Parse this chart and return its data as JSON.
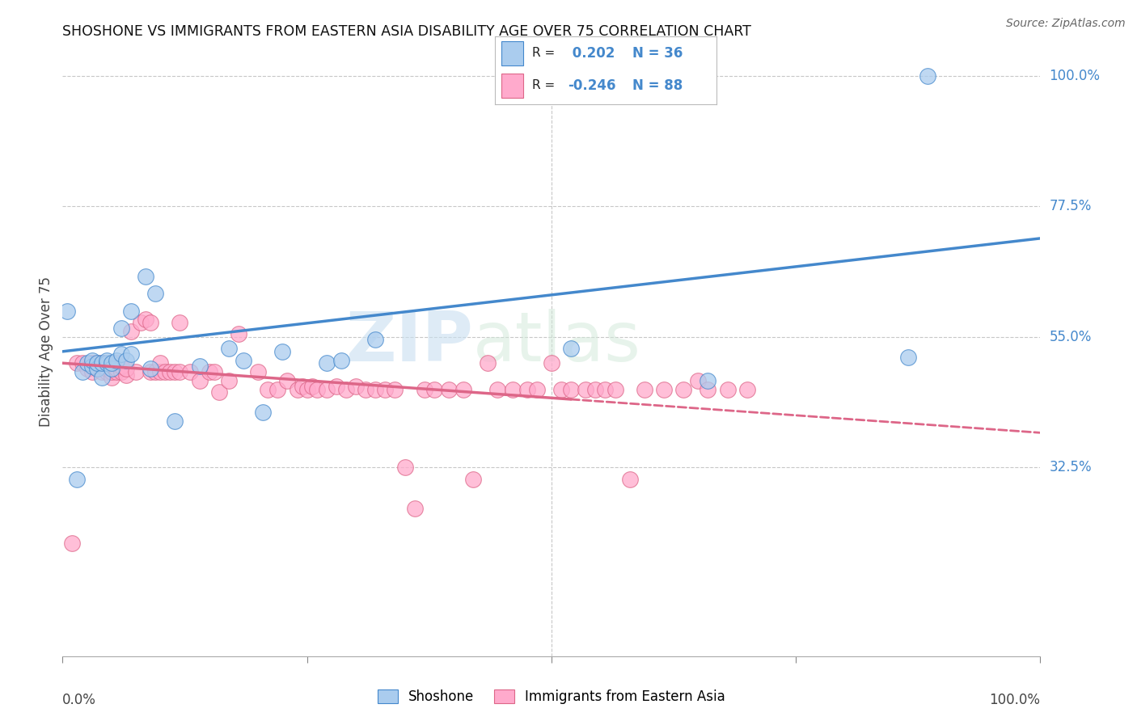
{
  "title": "SHOSHONE VS IMMIGRANTS FROM EASTERN ASIA DISABILITY AGE OVER 75 CORRELATION CHART",
  "source": "Source: ZipAtlas.com",
  "ylabel": "Disability Age Over 75",
  "xlim": [
    0.0,
    1.0
  ],
  "ylim": [
    0.0,
    1.0
  ],
  "ytick_vals": [
    0.325,
    0.55,
    0.775,
    1.0
  ],
  "ytick_labels": [
    "32.5%",
    "55.0%",
    "77.5%",
    "100.0%"
  ],
  "shoshone_color": "#aaccee",
  "shoshone_line_color": "#4488cc",
  "immigrants_color": "#ffaacc",
  "immigrants_line_color": "#dd6688",
  "R_shoshone": 0.202,
  "N_shoshone": 36,
  "R_immigrants": -0.246,
  "N_immigrants": 88,
  "watermark_zip": "ZIP",
  "watermark_atlas": "atlas",
  "background_color": "#ffffff",
  "shoshone_x": [
    0.005,
    0.015,
    0.02,
    0.025,
    0.03,
    0.03,
    0.035,
    0.035,
    0.04,
    0.04,
    0.045,
    0.045,
    0.05,
    0.05,
    0.055,
    0.06,
    0.06,
    0.065,
    0.07,
    0.07,
    0.085,
    0.09,
    0.095,
    0.115,
    0.14,
    0.17,
    0.185,
    0.205,
    0.225,
    0.27,
    0.285,
    0.32,
    0.52,
    0.66,
    0.865,
    0.885
  ],
  "shoshone_y": [
    0.595,
    0.305,
    0.49,
    0.505,
    0.5,
    0.51,
    0.495,
    0.505,
    0.48,
    0.505,
    0.505,
    0.51,
    0.495,
    0.505,
    0.51,
    0.52,
    0.565,
    0.51,
    0.595,
    0.52,
    0.655,
    0.495,
    0.625,
    0.405,
    0.5,
    0.53,
    0.51,
    0.42,
    0.525,
    0.505,
    0.51,
    0.545,
    0.53,
    0.475,
    0.515,
    1.0
  ],
  "immigrants_x": [
    0.01,
    0.015,
    0.02,
    0.025,
    0.03,
    0.03,
    0.035,
    0.035,
    0.04,
    0.04,
    0.04,
    0.045,
    0.045,
    0.05,
    0.05,
    0.05,
    0.055,
    0.055,
    0.055,
    0.06,
    0.06,
    0.065,
    0.065,
    0.07,
    0.075,
    0.08,
    0.085,
    0.09,
    0.09,
    0.095,
    0.1,
    0.1,
    0.105,
    0.11,
    0.115,
    0.12,
    0.12,
    0.13,
    0.14,
    0.15,
    0.155,
    0.16,
    0.17,
    0.18,
    0.2,
    0.21,
    0.22,
    0.23,
    0.24,
    0.245,
    0.25,
    0.255,
    0.26,
    0.27,
    0.28,
    0.29,
    0.3,
    0.31,
    0.32,
    0.33,
    0.34,
    0.35,
    0.36,
    0.37,
    0.38,
    0.395,
    0.41,
    0.42,
    0.435,
    0.445,
    0.46,
    0.475,
    0.485,
    0.5,
    0.51,
    0.52,
    0.535,
    0.545,
    0.555,
    0.565,
    0.58,
    0.595,
    0.615,
    0.635,
    0.65,
    0.66,
    0.68,
    0.7
  ],
  "immigrants_y": [
    0.195,
    0.505,
    0.505,
    0.495,
    0.49,
    0.505,
    0.495,
    0.505,
    0.49,
    0.5,
    0.505,
    0.49,
    0.495,
    0.48,
    0.49,
    0.505,
    0.49,
    0.495,
    0.505,
    0.49,
    0.5,
    0.485,
    0.495,
    0.56,
    0.49,
    0.575,
    0.58,
    0.49,
    0.575,
    0.49,
    0.49,
    0.505,
    0.49,
    0.49,
    0.49,
    0.49,
    0.575,
    0.49,
    0.475,
    0.49,
    0.49,
    0.455,
    0.475,
    0.555,
    0.49,
    0.46,
    0.46,
    0.475,
    0.46,
    0.465,
    0.46,
    0.465,
    0.46,
    0.46,
    0.465,
    0.46,
    0.465,
    0.46,
    0.46,
    0.46,
    0.46,
    0.325,
    0.255,
    0.46,
    0.46,
    0.46,
    0.46,
    0.305,
    0.505,
    0.46,
    0.46,
    0.46,
    0.46,
    0.505,
    0.46,
    0.46,
    0.46,
    0.46,
    0.46,
    0.46,
    0.305,
    0.46,
    0.46,
    0.46,
    0.475,
    0.46,
    0.46,
    0.46
  ],
  "trend_blue_x0": 0.0,
  "trend_blue_y0": 0.525,
  "trend_blue_x1": 1.0,
  "trend_blue_y1": 0.72,
  "trend_pink_x0": 0.0,
  "trend_pink_y0": 0.505,
  "trend_pink_x1": 1.0,
  "trend_pink_y1": 0.385,
  "trend_pink_solid_end": 0.52
}
